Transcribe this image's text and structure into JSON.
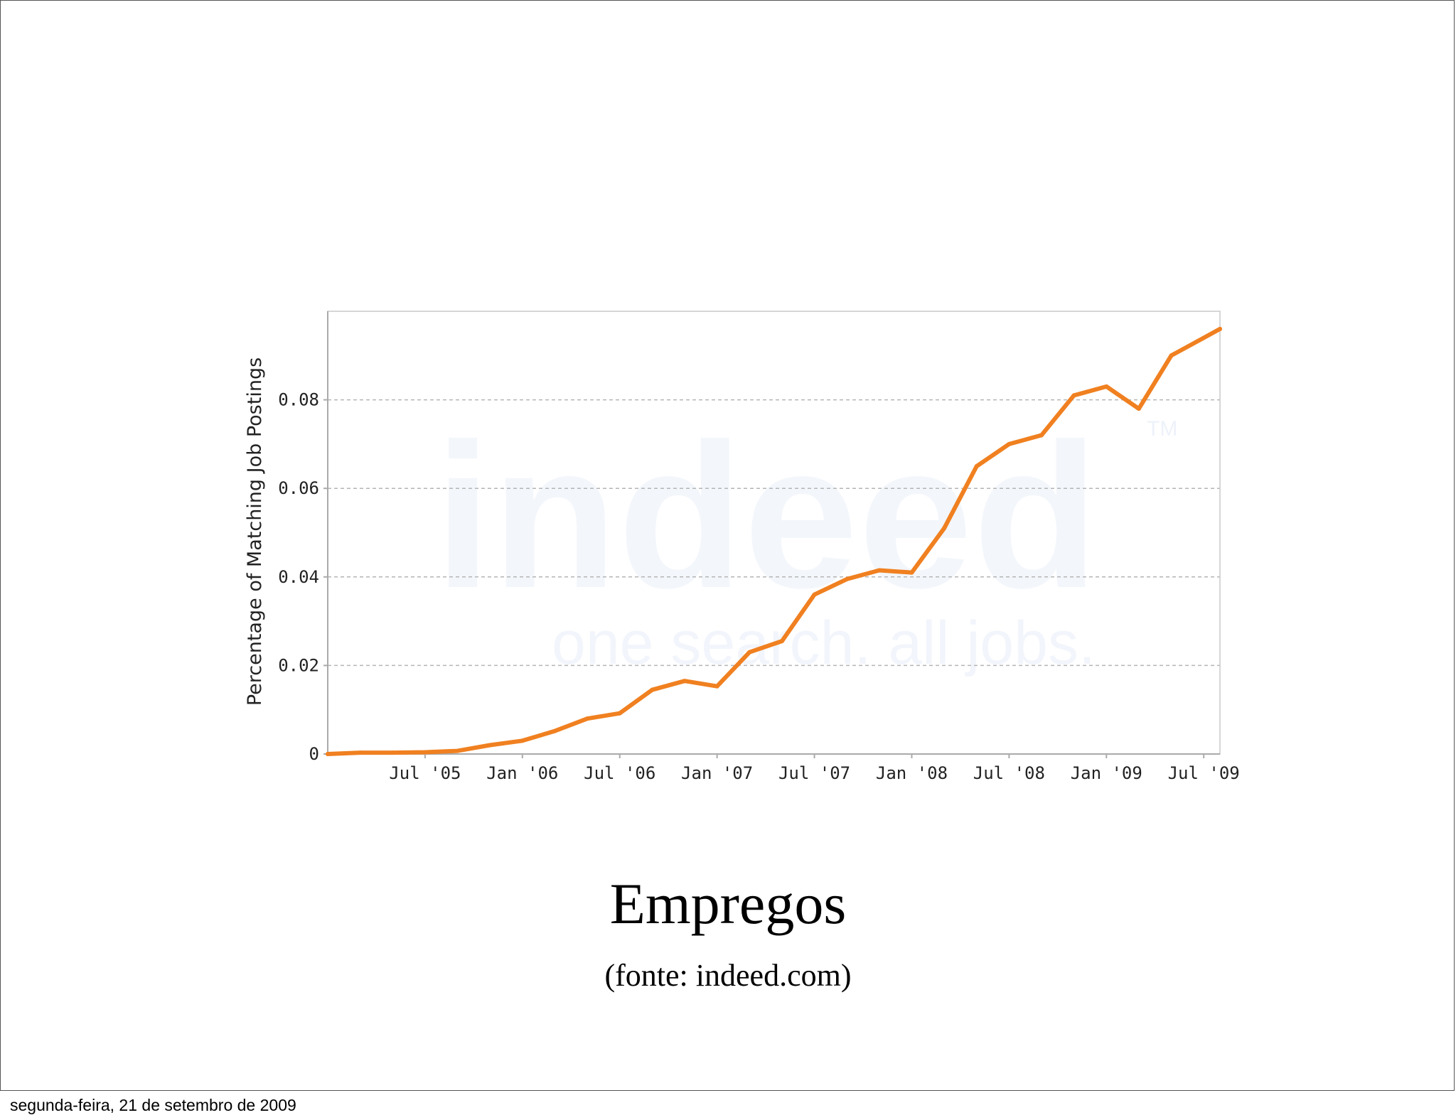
{
  "slide": {
    "title": "Empregos",
    "source": "(fonte: indeed.com)",
    "footer_date": "segunda-feira, 21 de setembro de 2009"
  },
  "watermark": {
    "brand": "indeed",
    "tagline": "one search. all jobs.",
    "tm": "TM"
  },
  "colors": {
    "line": "#f08020",
    "grid": "#b5b5b5",
    "axis": "#aaaaaa",
    "watermark": "#2f63c8"
  },
  "chart_data": {
    "type": "line",
    "title": "",
    "xlabel": "",
    "ylabel": "Percentage of Matching Job Postings",
    "ylim": [
      0,
      0.1
    ],
    "xlim": [
      "2005-01",
      "2009-08"
    ],
    "yticks": [
      0,
      0.02,
      0.04,
      0.06,
      0.08
    ],
    "ytick_labels": [
      "0",
      "0.02",
      "0.04",
      "0.06",
      "0.08"
    ],
    "xticks": [
      "2005-07",
      "2006-01",
      "2006-07",
      "2007-01",
      "2007-07",
      "2008-01",
      "2008-07",
      "2009-01",
      "2009-07"
    ],
    "xtick_labels": [
      "Jul '05",
      "Jan '06",
      "Jul '06",
      "Jan '07",
      "Jul '07",
      "Jan '08",
      "Jul '08",
      "Jan '09",
      "Jul '09"
    ],
    "grid": "horizontal dashed",
    "series": [
      {
        "x": [
          "2005-01",
          "2005-03",
          "2005-05",
          "2005-07",
          "2005-09",
          "2005-11",
          "2006-01",
          "2006-03",
          "2006-05",
          "2006-07",
          "2006-09",
          "2006-11",
          "2007-01",
          "2007-03",
          "2007-05",
          "2007-07",
          "2007-09",
          "2007-11",
          "2008-01",
          "2008-03",
          "2008-05",
          "2008-07",
          "2008-09",
          "2008-11",
          "2009-01",
          "2009-03",
          "2009-05",
          "2009-07",
          "2009-08"
        ],
        "y": [
          0.0,
          0.0003,
          0.0003,
          0.0004,
          0.0007,
          0.002,
          0.003,
          0.0052,
          0.008,
          0.0092,
          0.0145,
          0.0165,
          0.0153,
          0.023,
          0.0255,
          0.036,
          0.0395,
          0.0415,
          0.041,
          0.051,
          0.065,
          0.07,
          0.072,
          0.081,
          0.083,
          0.078,
          0.09,
          0.094,
          0.096
        ]
      }
    ]
  }
}
